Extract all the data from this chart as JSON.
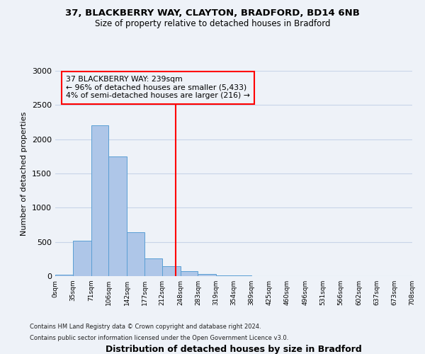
{
  "title_line1": "37, BLACKBERRY WAY, CLAYTON, BRADFORD, BD14 6NB",
  "title_line2": "Size of property relative to detached houses in Bradford",
  "xlabel": "Distribution of detached houses by size in Bradford",
  "ylabel": "Number of detached properties",
  "bin_edges": [
    0,
    35,
    71,
    106,
    142,
    177,
    212,
    248,
    283,
    319,
    354,
    389,
    425,
    460,
    496,
    531,
    566,
    602,
    637,
    673,
    708
  ],
  "bin_labels": [
    "0sqm",
    "35sqm",
    "71sqm",
    "106sqm",
    "142sqm",
    "177sqm",
    "212sqm",
    "248sqm",
    "283sqm",
    "319sqm",
    "354sqm",
    "389sqm",
    "425sqm",
    "460sqm",
    "496sqm",
    "531sqm",
    "566sqm",
    "602sqm",
    "637sqm",
    "673sqm",
    "708sqm"
  ],
  "bar_heights": [
    20,
    520,
    2200,
    1750,
    640,
    260,
    140,
    75,
    30,
    15,
    10,
    5,
    2,
    1,
    0,
    0,
    0,
    0,
    0,
    0
  ],
  "bar_color": "#aec6e8",
  "bar_edge_color": "#5a9fd4",
  "vline_x": 239,
  "vline_color": "red",
  "ylim": [
    0,
    3000
  ],
  "yticks": [
    0,
    500,
    1000,
    1500,
    2000,
    2500,
    3000
  ],
  "annotation_line1": "37 BLACKBERRY WAY: 239sqm",
  "annotation_line2": "← 96% of detached houses are smaller (5,433)",
  "annotation_line3": "4% of semi-detached houses are larger (216) →",
  "footer_line1": "Contains HM Land Registry data © Crown copyright and database right 2024.",
  "footer_line2": "Contains public sector information licensed under the Open Government Licence v3.0.",
  "background_color": "#eef2f8",
  "grid_color": "#c8d4e8"
}
